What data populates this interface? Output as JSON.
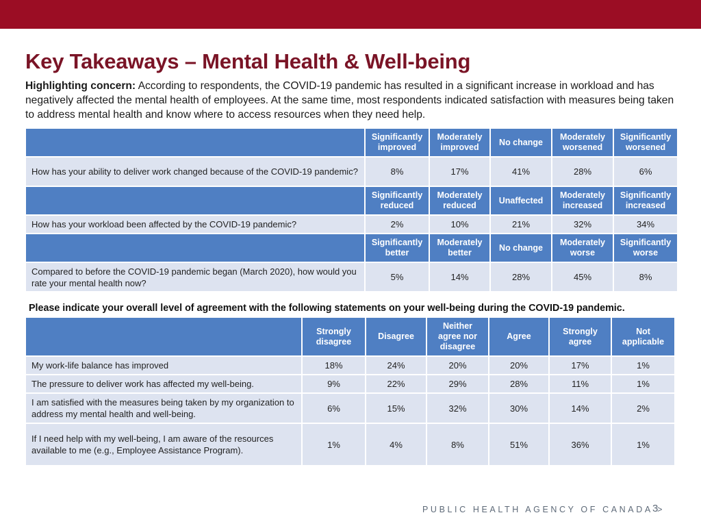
{
  "title": "Key Takeaways – Mental Health & Well-being",
  "intro": {
    "lead": "Highlighting concern:",
    "text": " According to respondents, the COVID-19 pandemic has resulted in a significant increase in workload and has negatively affected the mental health of employees. At the same time, most respondents indicated satisfaction with measures being taken to address mental health and know where to access resources when they need help."
  },
  "work_tables": [
    {
      "headers": [
        "Significantly improved",
        "Moderately improved",
        "No change",
        "Moderately worsened",
        "Significantly worsened"
      ],
      "question": "How has your ability to deliver work changed because of the COVID-19 pandemic?",
      "values": [
        "8%",
        "17%",
        "41%",
        "28%",
        "6%"
      ]
    },
    {
      "headers": [
        "Significantly reduced",
        "Moderately reduced",
        "Unaffected",
        "Moderately increased",
        "Significantly increased"
      ],
      "question": "How has your workload been affected by the COVID-19 pandemic?",
      "values": [
        "2%",
        "10%",
        "21%",
        "32%",
        "34%"
      ]
    },
    {
      "headers": [
        "Significantly better",
        "Moderately better",
        "No change",
        "Moderately worse",
        "Significantly worse"
      ],
      "question": "Compared to before the COVID-19 pandemic began (March 2020), how would you rate your mental health now?",
      "values": [
        "5%",
        "14%",
        "28%",
        "45%",
        "8%"
      ]
    }
  ],
  "statements_heading": "Please indicate your overall level of agreement with the following statements on your well-being during the COVID-19 pandemic.",
  "agreement": {
    "headers": [
      "Strongly disagree",
      "Disagree",
      "Neither agree nor disagree",
      "Agree",
      "Strongly agree",
      "Not applicable"
    ],
    "rows": [
      {
        "statement": "My work-life balance has improved",
        "values": [
          "18%",
          "24%",
          "20%",
          "20%",
          "17%",
          "1%"
        ]
      },
      {
        "statement": "The pressure to deliver work has affected my well-being.",
        "values": [
          "9%",
          "22%",
          "29%",
          "28%",
          "11%",
          "1%"
        ]
      },
      {
        "statement": "I am satisfied with the measures being taken by my organization to address my mental health and well-being.",
        "values": [
          "6%",
          "15%",
          "32%",
          "30%",
          "14%",
          "2%"
        ]
      },
      {
        "statement": "If I need help with my well-being, I am aware of the resources available to me (e.g., Employee Assistance Program).",
        "values": [
          "1%",
          "4%",
          "8%",
          "51%",
          "36%",
          "1%"
        ]
      }
    ]
  },
  "footer": {
    "org": "PUBLIC HEALTH AGENCY OF CANADA >",
    "page": "3"
  },
  "colors": {
    "top_bar": "#9b0d24",
    "title": "#7a1426",
    "header_cell": "#4f7fc3",
    "body_cell": "#dde3f0"
  }
}
